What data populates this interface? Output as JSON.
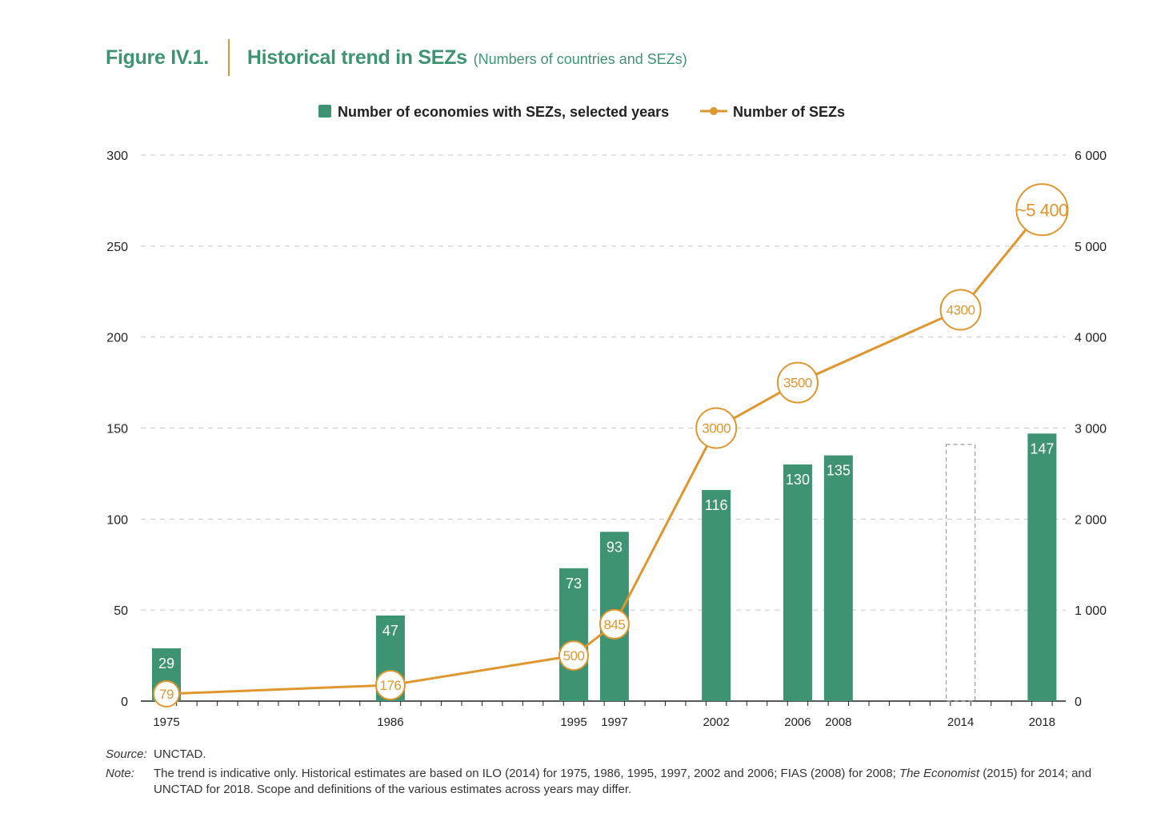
{
  "header": {
    "figure_label": "Figure IV.1.",
    "title": "Historical trend in SEZs",
    "subtitle": "(Numbers of countries and SEZs)"
  },
  "colors": {
    "bar": "#3e9373",
    "line": "#e0962e",
    "title": "#3e9373",
    "grid": "#c8c8c8"
  },
  "chart_data": {
    "type": "bar+line",
    "legend": {
      "position": "top-center",
      "bar_label": "Number of economies with SEZs, selected years",
      "line_label": "Number of SEZs"
    },
    "x_axis": {
      "type": "year",
      "range": [
        1975,
        2019
      ],
      "minor_ticks": "yearly",
      "tick_labels": [
        "1975",
        "1986",
        "1995",
        "1997",
        "2002",
        "2006",
        "2008",
        "2014",
        "2018"
      ]
    },
    "y_left": {
      "range": [
        0,
        300
      ],
      "ticks": [
        0,
        50,
        100,
        150,
        200,
        250,
        300
      ],
      "tick_labels": [
        "0",
        "50",
        "100",
        "150",
        "200",
        "250",
        "300"
      ]
    },
    "y_right": {
      "range": [
        0,
        6000
      ],
      "ticks": [
        0,
        1000,
        2000,
        3000,
        4000,
        5000,
        6000
      ],
      "tick_labels": [
        "0",
        "1 000",
        "2 000",
        "3 000",
        "4 000",
        "5 000",
        "6 000"
      ]
    },
    "grid": "horizontal dashed",
    "bars": [
      {
        "year": 1975,
        "value": 29,
        "label": "29"
      },
      {
        "year": 1986,
        "value": 47,
        "label": "47"
      },
      {
        "year": 1995,
        "value": 73,
        "label": "73"
      },
      {
        "year": 1997,
        "value": 93,
        "label": "93"
      },
      {
        "year": 2002,
        "value": 116,
        "label": "116"
      },
      {
        "year": 2006,
        "value": 130,
        "label": "130"
      },
      {
        "year": 2008,
        "value": 135,
        "label": "135"
      },
      {
        "year": 2014,
        "value": 141,
        "label": "",
        "style": "dashed-outline"
      },
      {
        "year": 2018,
        "value": 147,
        "label": "147"
      }
    ],
    "line": [
      {
        "year": 1975,
        "value": 79,
        "label": "79"
      },
      {
        "year": 1986,
        "value": 176,
        "label": "176"
      },
      {
        "year": 1995,
        "value": 500,
        "label": "500"
      },
      {
        "year": 1997,
        "value": 845,
        "label": "845"
      },
      {
        "year": 2002,
        "value": 3000,
        "label": "3000"
      },
      {
        "year": 2006,
        "value": 3500,
        "label": "3500"
      },
      {
        "year": 2014,
        "value": 4300,
        "label": "4300"
      },
      {
        "year": 2018,
        "value": 5400,
        "label": "~5 400",
        "emphasis": true
      }
    ]
  },
  "notes": {
    "source_label": "Source:",
    "source_text": "UNCTAD.",
    "note_label": "Note:",
    "note_text_1": "The trend is indicative only. Historical estimates are based on ILO (2014) for 1975, 1986, 1995, 1997, 2002 and 2006; FIAS (2008) for 2008;",
    "note_text_italic": "The Economist",
    "note_text_2": "(2015) for 2014; and UNCTAD for 2018. Scope and definitions of the various estimates across years may differ."
  }
}
